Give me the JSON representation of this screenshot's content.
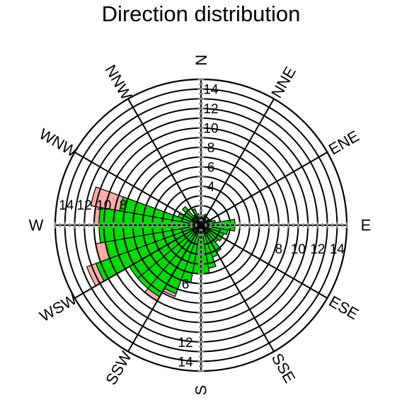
{
  "chart_data": {
    "type": "rose",
    "title": "Direction distribution",
    "directions": [
      "N",
      "NNE",
      "ENE",
      "E",
      "ESE",
      "SSE",
      "S",
      "SSW",
      "WSW",
      "W",
      "WNW",
      "NNW"
    ],
    "sector_angles_deg": [
      0,
      30,
      60,
      90,
      120,
      150,
      180,
      210,
      240,
      270,
      300,
      330
    ],
    "radial_max": 15,
    "radial_ticks": [
      2,
      4,
      6,
      8,
      10,
      12,
      14
    ],
    "radial_tick_labels_north": [
      "4",
      "6",
      "8",
      "10",
      "12",
      "14"
    ],
    "radial_tick_labels_east": [
      "8",
      "10",
      "12",
      "14"
    ],
    "radial_tick_labels_south": [
      "12",
      "14"
    ],
    "radial_tick_labels_west": [
      "8",
      "10",
      "12"
    ],
    "radial_label_fragments": [
      "6",
      "14"
    ],
    "series": [
      {
        "name": "",
        "color": "#00dd00",
        "bins": [
          {
            "start": 0,
            "end": 10,
            "value": 1.0
          },
          {
            "start": 10,
            "end": 20,
            "value": 0.8
          },
          {
            "start": 20,
            "end": 30,
            "value": 1.2
          },
          {
            "start": 30,
            "end": 40,
            "value": 0.8
          },
          {
            "start": 40,
            "end": 50,
            "value": 0.6
          },
          {
            "start": 50,
            "end": 60,
            "value": 1.0
          },
          {
            "start": 60,
            "end": 70,
            "value": 1.2
          },
          {
            "start": 70,
            "end": 80,
            "value": 1.5
          },
          {
            "start": 80,
            "end": 90,
            "value": 3.5
          },
          {
            "start": 90,
            "end": 100,
            "value": 3.5
          },
          {
            "start": 100,
            "end": 110,
            "value": 2.8
          },
          {
            "start": 110,
            "end": 120,
            "value": 2.5
          },
          {
            "start": 120,
            "end": 130,
            "value": 2.5
          },
          {
            "start": 130,
            "end": 140,
            "value": 2.3
          },
          {
            "start": 140,
            "end": 150,
            "value": 3.2
          },
          {
            "start": 150,
            "end": 160,
            "value": 3.5
          },
          {
            "start": 160,
            "end": 170,
            "value": 4.5
          },
          {
            "start": 170,
            "end": 180,
            "value": 5.0
          },
          {
            "start": 180,
            "end": 190,
            "value": 5.0
          },
          {
            "start": 190,
            "end": 200,
            "value": 6.0
          },
          {
            "start": 200,
            "end": 210,
            "value": 7.5
          },
          {
            "start": 210,
            "end": 220,
            "value": 8.5
          },
          {
            "start": 220,
            "end": 230,
            "value": 8.5
          },
          {
            "start": 230,
            "end": 240,
            "value": 8.5
          },
          {
            "start": 240,
            "end": 250,
            "value": 11.5
          },
          {
            "start": 250,
            "end": 260,
            "value": 10.0
          },
          {
            "start": 260,
            "end": 270,
            "value": 10.5
          },
          {
            "start": 270,
            "end": 280,
            "value": 10.5
          },
          {
            "start": 280,
            "end": 290,
            "value": 8.5
          },
          {
            "start": 290,
            "end": 300,
            "value": 2.5
          },
          {
            "start": 300,
            "end": 310,
            "value": 2.0
          },
          {
            "start": 310,
            "end": 320,
            "value": 2.5
          },
          {
            "start": 320,
            "end": 330,
            "value": 1.2
          },
          {
            "start": 330,
            "end": 340,
            "value": 1.8
          },
          {
            "start": 340,
            "end": 350,
            "value": 1.2
          },
          {
            "start": 350,
            "end": 360,
            "value": 1.0
          }
        ]
      },
      {
        "name": "",
        "color": "#ffaaaa",
        "bins": [
          {
            "start": 200,
            "end": 210,
            "value": 7.8
          },
          {
            "start": 210,
            "end": 220,
            "value": 9.0
          },
          {
            "start": 240,
            "end": 250,
            "value": 12.5
          },
          {
            "start": 250,
            "end": 260,
            "value": 11.0
          },
          {
            "start": 270,
            "end": 280,
            "value": 11.0
          },
          {
            "start": 280,
            "end": 290,
            "value": 11.5
          }
        ]
      }
    ],
    "grid": true
  }
}
